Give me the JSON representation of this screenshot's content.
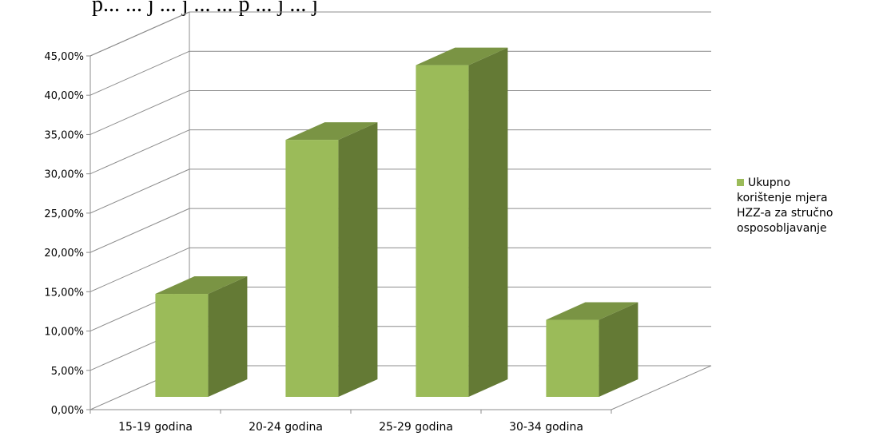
{
  "chart_data": {
    "type": "bar",
    "title": "",
    "clipped_header_text": "p... ... j ... j ... ... p ... j ... j",
    "xlabel": "",
    "ylabel": "",
    "categories": [
      "15-19 godina",
      "20-24 godina",
      "25-29 godina",
      "30-34 godina"
    ],
    "series": [
      {
        "name": "Ukupno korištenje mjera HZZ-a za stručno osposobljavanje",
        "values": [
          13.1,
          32.7,
          42.2,
          9.8
        ]
      }
    ],
    "ylim": [
      0,
      45
    ],
    "yticks": [
      "0,00%",
      "5,00%",
      "10,00%",
      "15,00%",
      "20,00%",
      "25,00%",
      "30,00%",
      "35,00%",
      "40,00%",
      "45,00%"
    ],
    "grid": true,
    "three_d": true,
    "legend_position": "right",
    "colors": {
      "bar_front": "#9bbb59",
      "bar_side": "#647a35",
      "bar_top": "#7a9444",
      "grid": "#8c8c8c"
    }
  }
}
